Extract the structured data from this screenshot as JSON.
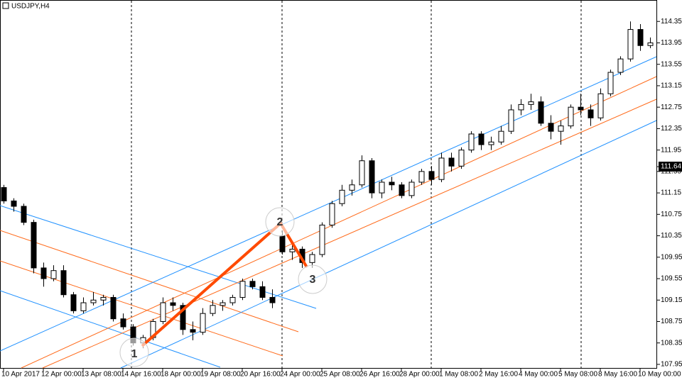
{
  "chart_data": {
    "type": "candlestick",
    "title": "USDJPY,H4",
    "categories": [
      "10 Apr 2017",
      null,
      null,
      null,
      "12 Apr 00:00",
      null,
      null,
      null,
      "13 Apr 08:00",
      null,
      null,
      null,
      "14 Apr 16:00",
      null,
      null,
      null,
      "18 Apr 00:00",
      null,
      null,
      null,
      "19 Apr 08:00",
      null,
      null,
      null,
      "20 Apr 16:00",
      null,
      null,
      null,
      "24 Apr 00:00",
      null,
      null,
      null,
      "25 Apr 08:00",
      null,
      null,
      null,
      "26 Apr 16:00",
      null,
      null,
      null,
      "28 Apr 00:00",
      null,
      null,
      null,
      "1 May 08:00",
      null,
      null,
      null,
      "2 May 16:00",
      null,
      null,
      null,
      "4 May 00:00",
      null,
      null,
      null,
      "5 May 08:00",
      null,
      null,
      null,
      "8 May 16:00",
      null,
      null,
      null,
      "10 May 00:00",
      null
    ],
    "open": [
      111.25,
      111.0,
      110.9,
      110.6,
      109.75,
      109.55,
      109.7,
      109.25,
      108.95,
      109.1,
      109.15,
      109.2,
      108.8,
      108.65,
      108.35,
      108.45,
      108.75,
      109.1,
      109.05,
      108.6,
      108.55,
      108.9,
      109.05,
      109.1,
      109.2,
      109.5,
      109.4,
      109.2,
      110.35,
      110.05,
      110.1,
      109.85,
      110.0,
      110.55,
      110.95,
      111.2,
      111.3,
      111.75,
      111.15,
      111.35,
      111.3,
      111.1,
      111.35,
      111.55,
      111.4,
      111.8,
      111.65,
      111.95,
      112.25,
      112.05,
      112.1,
      112.3,
      112.7,
      112.8,
      112.85,
      112.45,
      112.3,
      112.4,
      112.75,
      112.7,
      112.55,
      113.0,
      113.4,
      113.65,
      114.2,
      113.9
    ],
    "high": [
      111.3,
      111.05,
      110.95,
      110.65,
      109.85,
      109.8,
      109.8,
      109.3,
      109.2,
      109.3,
      109.25,
      109.25,
      108.9,
      108.7,
      108.5,
      108.8,
      109.2,
      109.2,
      109.1,
      108.75,
      109.0,
      109.15,
      109.15,
      109.25,
      109.55,
      109.55,
      109.5,
      109.35,
      110.45,
      110.2,
      110.15,
      110.05,
      110.6,
      111.0,
      111.3,
      111.4,
      111.85,
      111.8,
      111.4,
      111.45,
      111.35,
      111.4,
      111.6,
      111.65,
      111.9,
      111.9,
      112.0,
      112.3,
      112.3,
      112.2,
      112.4,
      112.8,
      112.9,
      113.0,
      112.95,
      112.6,
      112.5,
      112.8,
      113.0,
      112.8,
      113.1,
      113.45,
      113.7,
      114.35,
      114.3,
      114.05
    ],
    "low": [
      110.95,
      110.8,
      110.55,
      109.65,
      109.4,
      109.5,
      109.2,
      108.9,
      108.9,
      109.05,
      109.05,
      108.75,
      108.6,
      108.3,
      108.25,
      108.4,
      108.7,
      108.95,
      108.5,
      108.4,
      108.5,
      108.85,
      108.95,
      109.05,
      109.15,
      109.35,
      109.15,
      109.0,
      110.0,
      109.9,
      109.75,
      109.75,
      109.95,
      110.5,
      110.9,
      111.1,
      111.25,
      111.05,
      111.05,
      111.2,
      111.05,
      111.05,
      111.3,
      111.3,
      111.35,
      111.55,
      111.6,
      111.9,
      111.95,
      111.95,
      112.05,
      112.25,
      112.6,
      112.7,
      112.4,
      112.15,
      112.05,
      112.35,
      112.6,
      112.4,
      112.5,
      112.95,
      113.35,
      113.6,
      113.8,
      113.85
    ],
    "close": [
      111.0,
      110.9,
      110.6,
      109.75,
      109.55,
      109.7,
      109.25,
      108.95,
      109.1,
      109.15,
      109.2,
      108.8,
      108.65,
      108.35,
      108.45,
      108.75,
      109.1,
      109.05,
      108.6,
      108.55,
      108.9,
      109.05,
      109.1,
      109.2,
      109.5,
      109.4,
      109.2,
      109.1,
      110.05,
      110.1,
      109.85,
      110.0,
      110.55,
      110.95,
      111.2,
      111.3,
      111.75,
      111.15,
      111.35,
      111.3,
      111.1,
      111.35,
      111.55,
      111.4,
      111.8,
      111.65,
      111.95,
      112.25,
      112.05,
      112.1,
      112.3,
      112.7,
      112.8,
      112.85,
      112.45,
      112.3,
      112.4,
      112.75,
      112.7,
      112.55,
      113.0,
      113.4,
      113.65,
      114.2,
      113.9,
      113.95
    ],
    "ylim": [
      107.87,
      114.75
    ],
    "yticks": [
      107.95,
      108.35,
      108.75,
      109.15,
      109.55,
      109.95,
      110.35,
      110.75,
      111.15,
      111.55,
      111.95,
      112.35,
      112.75,
      113.15,
      113.55,
      113.95,
      114.35
    ],
    "current_price": 111.64,
    "annotations": [
      "1",
      "2",
      "3"
    ]
  }
}
